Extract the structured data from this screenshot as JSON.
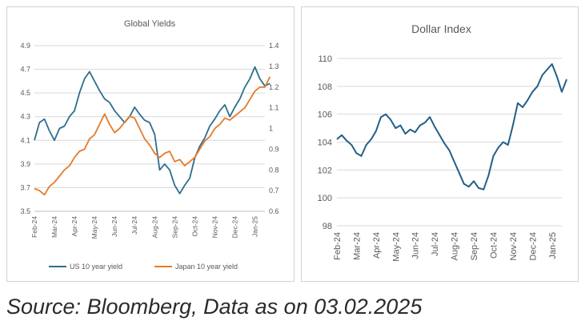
{
  "caption": "Source: Bloomberg, Data as on 03.02.2025",
  "colors": {
    "us": "#2e6e8e",
    "japan": "#e57b2c",
    "dollar": "#235f86",
    "grid": "#d9d9d9",
    "axis_text": "#595959"
  },
  "chart_data": [
    {
      "type": "line",
      "title": "Global Yields",
      "x_tick_labels": [
        "Feb-24",
        "Mar-24",
        "Apr-24",
        "May-24",
        "Jun-24",
        "Jul-24",
        "Aug-24",
        "Sep-24",
        "Oct-24",
        "Nov-24",
        "Dec-24",
        "Jan-25"
      ],
      "y_left": {
        "min": 3.5,
        "max": 4.9,
        "ticks": [
          3.5,
          3.7,
          3.9,
          4.1,
          4.3,
          4.5,
          4.7,
          4.9
        ]
      },
      "y_right": {
        "min": 0.6,
        "max": 1.4,
        "ticks": [
          0.6,
          0.7,
          0.8,
          0.9,
          1,
          1.1,
          1.2,
          1.3,
          1.4
        ]
      },
      "grid": true,
      "legend_position": "bottom",
      "series": [
        {
          "name": "US 10 year yield",
          "axis": "left",
          "x": [
            0,
            0.25,
            0.5,
            0.75,
            1,
            1.25,
            1.5,
            1.75,
            2,
            2.25,
            2.5,
            2.75,
            3,
            3.25,
            3.5,
            3.75,
            4,
            4.25,
            4.5,
            4.75,
            5,
            5.25,
            5.5,
            5.75,
            6,
            6.25,
            6.5,
            6.75,
            7,
            7.25,
            7.5,
            7.75,
            8,
            8.25,
            8.5,
            8.75,
            9,
            9.25,
            9.5,
            9.75,
            10,
            10.25,
            10.5,
            10.75,
            11,
            11.25,
            11.5,
            11.75
          ],
          "values": [
            4.1,
            4.25,
            4.28,
            4.18,
            4.1,
            4.2,
            4.22,
            4.3,
            4.35,
            4.5,
            4.62,
            4.68,
            4.6,
            4.52,
            4.45,
            4.42,
            4.35,
            4.3,
            4.25,
            4.3,
            4.38,
            4.32,
            4.27,
            4.25,
            4.15,
            3.85,
            3.9,
            3.85,
            3.72,
            3.65,
            3.72,
            3.78,
            3.95,
            4.05,
            4.12,
            4.22,
            4.28,
            4.35,
            4.4,
            4.3,
            4.38,
            4.45,
            4.55,
            4.62,
            4.72,
            4.62,
            4.56,
            4.58
          ]
        },
        {
          "name": "Japan 10 year yield",
          "axis": "right",
          "x": [
            0,
            0.25,
            0.5,
            0.75,
            1,
            1.25,
            1.5,
            1.75,
            2,
            2.25,
            2.5,
            2.75,
            3,
            3.25,
            3.5,
            3.75,
            4,
            4.25,
            4.5,
            4.75,
            5,
            5.25,
            5.5,
            5.75,
            6,
            6.25,
            6.5,
            6.75,
            7,
            7.25,
            7.5,
            7.75,
            8,
            8.25,
            8.5,
            8.75,
            9,
            9.25,
            9.5,
            9.75,
            10,
            10.25,
            10.5,
            10.75,
            11,
            11.25,
            11.5,
            11.75
          ],
          "values": [
            0.71,
            0.7,
            0.68,
            0.72,
            0.74,
            0.77,
            0.8,
            0.82,
            0.86,
            0.89,
            0.9,
            0.95,
            0.97,
            1.02,
            1.07,
            1.02,
            0.98,
            1.0,
            1.03,
            1.06,
            1.05,
            1.0,
            0.95,
            0.92,
            0.88,
            0.86,
            0.88,
            0.89,
            0.84,
            0.85,
            0.82,
            0.84,
            0.86,
            0.9,
            0.94,
            0.96,
            1.0,
            1.02,
            1.05,
            1.04,
            1.06,
            1.08,
            1.1,
            1.14,
            1.18,
            1.2,
            1.2,
            1.25
          ]
        }
      ]
    },
    {
      "type": "line",
      "title": "Dollar Index",
      "x_tick_labels": [
        "Feb-24",
        "Mar-24",
        "Apr-24",
        "May-24",
        "Jun-24",
        "Jul-24",
        "Aug-24",
        "Sep-24",
        "Oct-24",
        "Nov-24",
        "Dec-24",
        "Jan-25"
      ],
      "y": {
        "min": 98,
        "max": 110,
        "ticks": [
          98,
          100,
          102,
          104,
          106,
          108,
          110
        ]
      },
      "grid": true,
      "series": [
        {
          "name": "",
          "x": [
            0,
            0.25,
            0.5,
            0.75,
            1,
            1.25,
            1.5,
            1.75,
            2,
            2.25,
            2.5,
            2.75,
            3,
            3.25,
            3.5,
            3.75,
            4,
            4.25,
            4.5,
            4.75,
            5,
            5.25,
            5.5,
            5.75,
            6,
            6.25,
            6.5,
            6.75,
            7,
            7.25,
            7.5,
            7.75,
            8,
            8.25,
            8.5,
            8.75,
            9,
            9.25,
            9.5,
            9.75,
            10,
            10.25,
            10.5,
            10.75,
            11,
            11.25,
            11.5,
            11.75
          ],
          "values": [
            104.2,
            104.5,
            104.1,
            103.8,
            103.2,
            103.0,
            103.8,
            104.2,
            104.8,
            105.8,
            106.0,
            105.6,
            105.0,
            105.2,
            104.6,
            104.9,
            104.7,
            105.2,
            105.4,
            105.8,
            105.1,
            104.5,
            103.9,
            103.4,
            102.6,
            101.8,
            101.0,
            100.8,
            101.2,
            100.7,
            100.6,
            101.6,
            103.0,
            103.6,
            104.0,
            103.8,
            105.2,
            106.8,
            106.5,
            107.0,
            107.6,
            108.0,
            108.8,
            109.2,
            109.6,
            108.7,
            107.6,
            108.5
          ]
        }
      ]
    }
  ]
}
